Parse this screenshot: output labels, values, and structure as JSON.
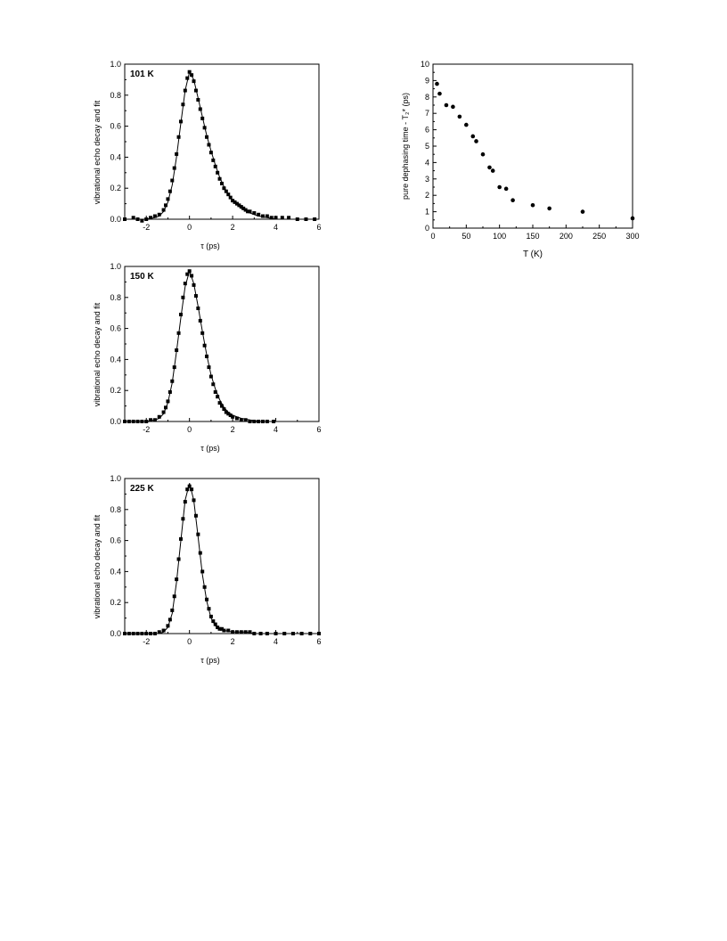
{
  "chart_data": [
    {
      "type": "scatter",
      "panel_label": "101 K",
      "xlabel": "τ (ps)",
      "ylabel": "vibrational echo decay and fit",
      "xlim": [
        -3,
        6
      ],
      "ylim": [
        0,
        1.0
      ],
      "xticks": [
        -2,
        0,
        2,
        4,
        6
      ],
      "yticks": [
        0.0,
        0.2,
        0.4,
        0.6,
        0.8,
        1.0
      ],
      "series": [
        {
          "kind": "points",
          "x": [
            -3.0,
            -2.6,
            -2.4,
            -2.2,
            -2.0,
            -1.8,
            -1.6,
            -1.4,
            -1.2,
            -1.1,
            -1.0,
            -0.9,
            -0.8,
            -0.7,
            -0.6,
            -0.5,
            -0.4,
            -0.3,
            -0.2,
            -0.1,
            0.0,
            0.1,
            0.2,
            0.3,
            0.4,
            0.5,
            0.6,
            0.7,
            0.8,
            0.9,
            1.0,
            1.1,
            1.2,
            1.3,
            1.4,
            1.5,
            1.6,
            1.7,
            1.8,
            1.9,
            2.0,
            2.1,
            2.2,
            2.3,
            2.4,
            2.5,
            2.6,
            2.7,
            2.8,
            3.0,
            3.2,
            3.4,
            3.6,
            3.8,
            4.0,
            4.3,
            4.6,
            5.0,
            5.4,
            5.8
          ],
          "y": [
            0.0,
            0.01,
            0.0,
            -0.01,
            0.0,
            0.01,
            0.02,
            0.03,
            0.06,
            0.09,
            0.13,
            0.18,
            0.25,
            0.33,
            0.42,
            0.53,
            0.63,
            0.74,
            0.83,
            0.91,
            0.95,
            0.93,
            0.89,
            0.83,
            0.77,
            0.71,
            0.65,
            0.59,
            0.53,
            0.48,
            0.43,
            0.38,
            0.34,
            0.3,
            0.26,
            0.23,
            0.2,
            0.18,
            0.16,
            0.14,
            0.12,
            0.11,
            0.1,
            0.09,
            0.08,
            0.07,
            0.06,
            0.05,
            0.05,
            0.04,
            0.03,
            0.02,
            0.02,
            0.01,
            0.01,
            0.01,
            0.01,
            0.0,
            0.0,
            0.0
          ]
        },
        {
          "kind": "fit",
          "x": [
            -3.0,
            -2.0,
            -1.6,
            -1.4,
            -1.2,
            -1.0,
            -0.8,
            -0.6,
            -0.4,
            -0.2,
            0.0,
            0.2,
            0.4,
            0.6,
            0.8,
            1.0,
            1.2,
            1.4,
            1.6,
            1.8,
            2.0,
            2.4,
            2.8,
            3.2,
            3.6,
            4.0,
            5.0,
            6.0
          ],
          "y": [
            0.0,
            0.0,
            0.01,
            0.02,
            0.05,
            0.11,
            0.22,
            0.4,
            0.62,
            0.83,
            0.95,
            0.9,
            0.78,
            0.66,
            0.54,
            0.44,
            0.35,
            0.27,
            0.21,
            0.16,
            0.12,
            0.07,
            0.04,
            0.02,
            0.01,
            0.0,
            0.0,
            0.0
          ]
        }
      ]
    },
    {
      "type": "scatter",
      "panel_label": "150 K",
      "xlabel": "τ (ps)",
      "ylabel": "vibrational echo decay and fit",
      "xlim": [
        -3,
        6
      ],
      "ylim": [
        0,
        1.0
      ],
      "xticks": [
        -2,
        0,
        2,
        4,
        6
      ],
      "yticks": [
        0.0,
        0.2,
        0.4,
        0.6,
        0.8,
        1.0
      ],
      "series": [
        {
          "kind": "points",
          "x": [
            -3.0,
            -2.8,
            -2.6,
            -2.4,
            -2.2,
            -2.0,
            -1.8,
            -1.6,
            -1.4,
            -1.2,
            -1.1,
            -1.0,
            -0.9,
            -0.8,
            -0.7,
            -0.6,
            -0.5,
            -0.4,
            -0.3,
            -0.2,
            -0.1,
            0.0,
            0.1,
            0.2,
            0.3,
            0.4,
            0.5,
            0.6,
            0.7,
            0.8,
            0.9,
            1.0,
            1.1,
            1.2,
            1.3,
            1.4,
            1.5,
            1.6,
            1.7,
            1.8,
            1.9,
            2.0,
            2.2,
            2.4,
            2.6,
            2.8,
            3.0,
            3.2,
            3.4,
            3.6,
            3.9
          ],
          "y": [
            0.0,
            0.0,
            0.0,
            0.0,
            0.0,
            0.0,
            0.01,
            0.01,
            0.03,
            0.06,
            0.09,
            0.13,
            0.19,
            0.26,
            0.35,
            0.46,
            0.57,
            0.69,
            0.8,
            0.89,
            0.95,
            0.97,
            0.94,
            0.88,
            0.81,
            0.73,
            0.65,
            0.57,
            0.49,
            0.42,
            0.35,
            0.29,
            0.24,
            0.19,
            0.16,
            0.12,
            0.1,
            0.08,
            0.06,
            0.05,
            0.04,
            0.03,
            0.02,
            0.01,
            0.01,
            0.0,
            0.0,
            0.0,
            0.0,
            0.0,
            0.0
          ]
        },
        {
          "kind": "fit",
          "x": [
            -3.0,
            -2.0,
            -1.6,
            -1.4,
            -1.2,
            -1.0,
            -0.8,
            -0.6,
            -0.4,
            -0.2,
            0.0,
            0.2,
            0.4,
            0.6,
            0.8,
            1.0,
            1.2,
            1.4,
            1.6,
            1.8,
            2.0,
            2.4,
            2.8,
            3.2,
            4.0
          ],
          "y": [
            0.0,
            0.0,
            0.01,
            0.02,
            0.05,
            0.12,
            0.25,
            0.45,
            0.67,
            0.87,
            0.97,
            0.89,
            0.74,
            0.58,
            0.43,
            0.3,
            0.21,
            0.14,
            0.09,
            0.06,
            0.04,
            0.02,
            0.01,
            0.0,
            0.0
          ]
        }
      ]
    },
    {
      "type": "scatter",
      "panel_label": "225 K",
      "xlabel": "τ (ps)",
      "ylabel": "vibrational echo decay and fit",
      "xlim": [
        -3,
        6
      ],
      "ylim": [
        0,
        1.0
      ],
      "xticks": [
        -2,
        0,
        2,
        4,
        6
      ],
      "yticks": [
        0.0,
        0.2,
        0.4,
        0.6,
        0.8,
        1.0
      ],
      "series": [
        {
          "kind": "points",
          "x": [
            -3.0,
            -2.8,
            -2.6,
            -2.4,
            -2.2,
            -2.0,
            -1.8,
            -1.6,
            -1.4,
            -1.2,
            -1.0,
            -0.9,
            -0.8,
            -0.7,
            -0.6,
            -0.5,
            -0.4,
            -0.3,
            -0.2,
            -0.1,
            0.0,
            0.1,
            0.2,
            0.3,
            0.4,
            0.5,
            0.6,
            0.7,
            0.8,
            0.9,
            1.0,
            1.1,
            1.2,
            1.3,
            1.4,
            1.5,
            1.6,
            1.8,
            2.0,
            2.2,
            2.4,
            2.6,
            2.8,
            3.0,
            3.3,
            3.6,
            4.0,
            4.4,
            4.8,
            5.2,
            5.6,
            6.0
          ],
          "y": [
            0.0,
            0.0,
            0.0,
            0.0,
            0.0,
            0.0,
            0.0,
            0.0,
            0.01,
            0.02,
            0.05,
            0.09,
            0.15,
            0.24,
            0.35,
            0.48,
            0.61,
            0.74,
            0.85,
            0.93,
            0.95,
            0.93,
            0.86,
            0.76,
            0.64,
            0.52,
            0.4,
            0.3,
            0.22,
            0.16,
            0.11,
            0.08,
            0.06,
            0.04,
            0.03,
            0.03,
            0.02,
            0.02,
            0.01,
            0.01,
            0.01,
            0.01,
            0.01,
            0.0,
            0.0,
            0.0,
            0.0,
            0.0,
            0.0,
            0.0,
            0.0,
            0.0
          ]
        },
        {
          "kind": "fit",
          "x": [
            -3.0,
            -2.0,
            -1.4,
            -1.2,
            -1.0,
            -0.8,
            -0.6,
            -0.4,
            -0.2,
            0.0,
            0.2,
            0.4,
            0.6,
            0.8,
            1.0,
            1.2,
            1.4,
            1.6,
            2.0,
            2.6,
            3.0,
            4.0,
            6.0
          ],
          "y": [
            0.0,
            0.0,
            0.0,
            0.01,
            0.04,
            0.13,
            0.33,
            0.6,
            0.86,
            0.97,
            0.86,
            0.62,
            0.38,
            0.21,
            0.1,
            0.05,
            0.03,
            0.02,
            0.01,
            0.01,
            0.0,
            0.0,
            0.0
          ]
        }
      ]
    },
    {
      "type": "scatter",
      "panel_label": "",
      "xlabel": "T (K)",
      "ylabel": "pure dephasing time - T₂* (ps)",
      "xlim": [
        0,
        300
      ],
      "ylim": [
        0,
        10
      ],
      "xticks": [
        0,
        50,
        100,
        150,
        200,
        250,
        300
      ],
      "yticks": [
        0,
        1,
        2,
        3,
        4,
        5,
        6,
        7,
        8,
        9,
        10
      ],
      "series": [
        {
          "kind": "points",
          "x": [
            6,
            10,
            20,
            30,
            40,
            50,
            60,
            65,
            75,
            85,
            90,
            100,
            110,
            120,
            150,
            175,
            225,
            300
          ],
          "y": [
            8.8,
            8.2,
            7.5,
            7.4,
            6.8,
            6.3,
            5.6,
            5.3,
            4.5,
            3.7,
            3.5,
            2.5,
            2.4,
            1.7,
            1.4,
            1.2,
            1.0,
            0.6
          ]
        }
      ]
    }
  ]
}
